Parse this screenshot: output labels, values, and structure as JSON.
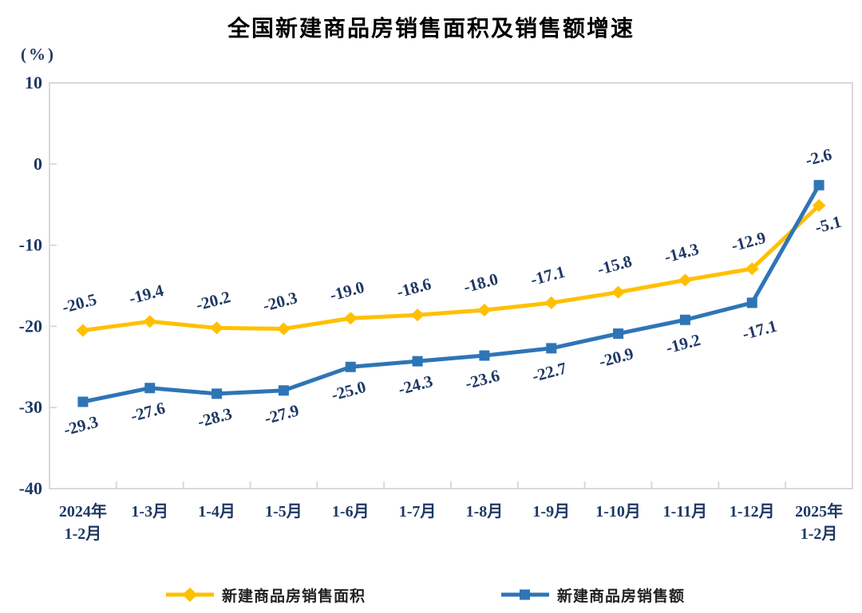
{
  "title": "全国新建商品房销售面积及销售额增速",
  "chart_data": {
    "type": "line",
    "title": "全国新建商品房销售面积及销售额增速",
    "unit": "(%)",
    "categories": [
      "2024年\n1-2月",
      "1-3月",
      "1-4月",
      "1-5月",
      "1-6月",
      "1-7月",
      "1-8月",
      "1-9月",
      "1-10月",
      "1-11月",
      "1-12月",
      "2025年\n1-2月"
    ],
    "series": [
      {
        "name": "新建商品房销售面积",
        "color": "#FFC000",
        "marker": "diamond",
        "values": [
          -20.5,
          -19.4,
          -20.2,
          -20.3,
          -19.0,
          -18.6,
          -18.0,
          -17.1,
          -15.8,
          -14.3,
          -12.9,
          -5.1
        ]
      },
      {
        "name": "新建商品房销售额",
        "color": "#2E75B6",
        "marker": "square",
        "values": [
          -29.3,
          -27.6,
          -28.3,
          -27.9,
          -25.0,
          -24.3,
          -23.6,
          -22.7,
          -20.9,
          -19.2,
          -17.1,
          -2.6
        ]
      }
    ],
    "ylim": [
      -40,
      10
    ],
    "yticks": [
      10,
      0,
      -10,
      -20,
      -30,
      -40
    ],
    "grid": false,
    "legend_position": "bottom",
    "axis_color": "#D9D9D9",
    "label_color": "#1F3864"
  }
}
